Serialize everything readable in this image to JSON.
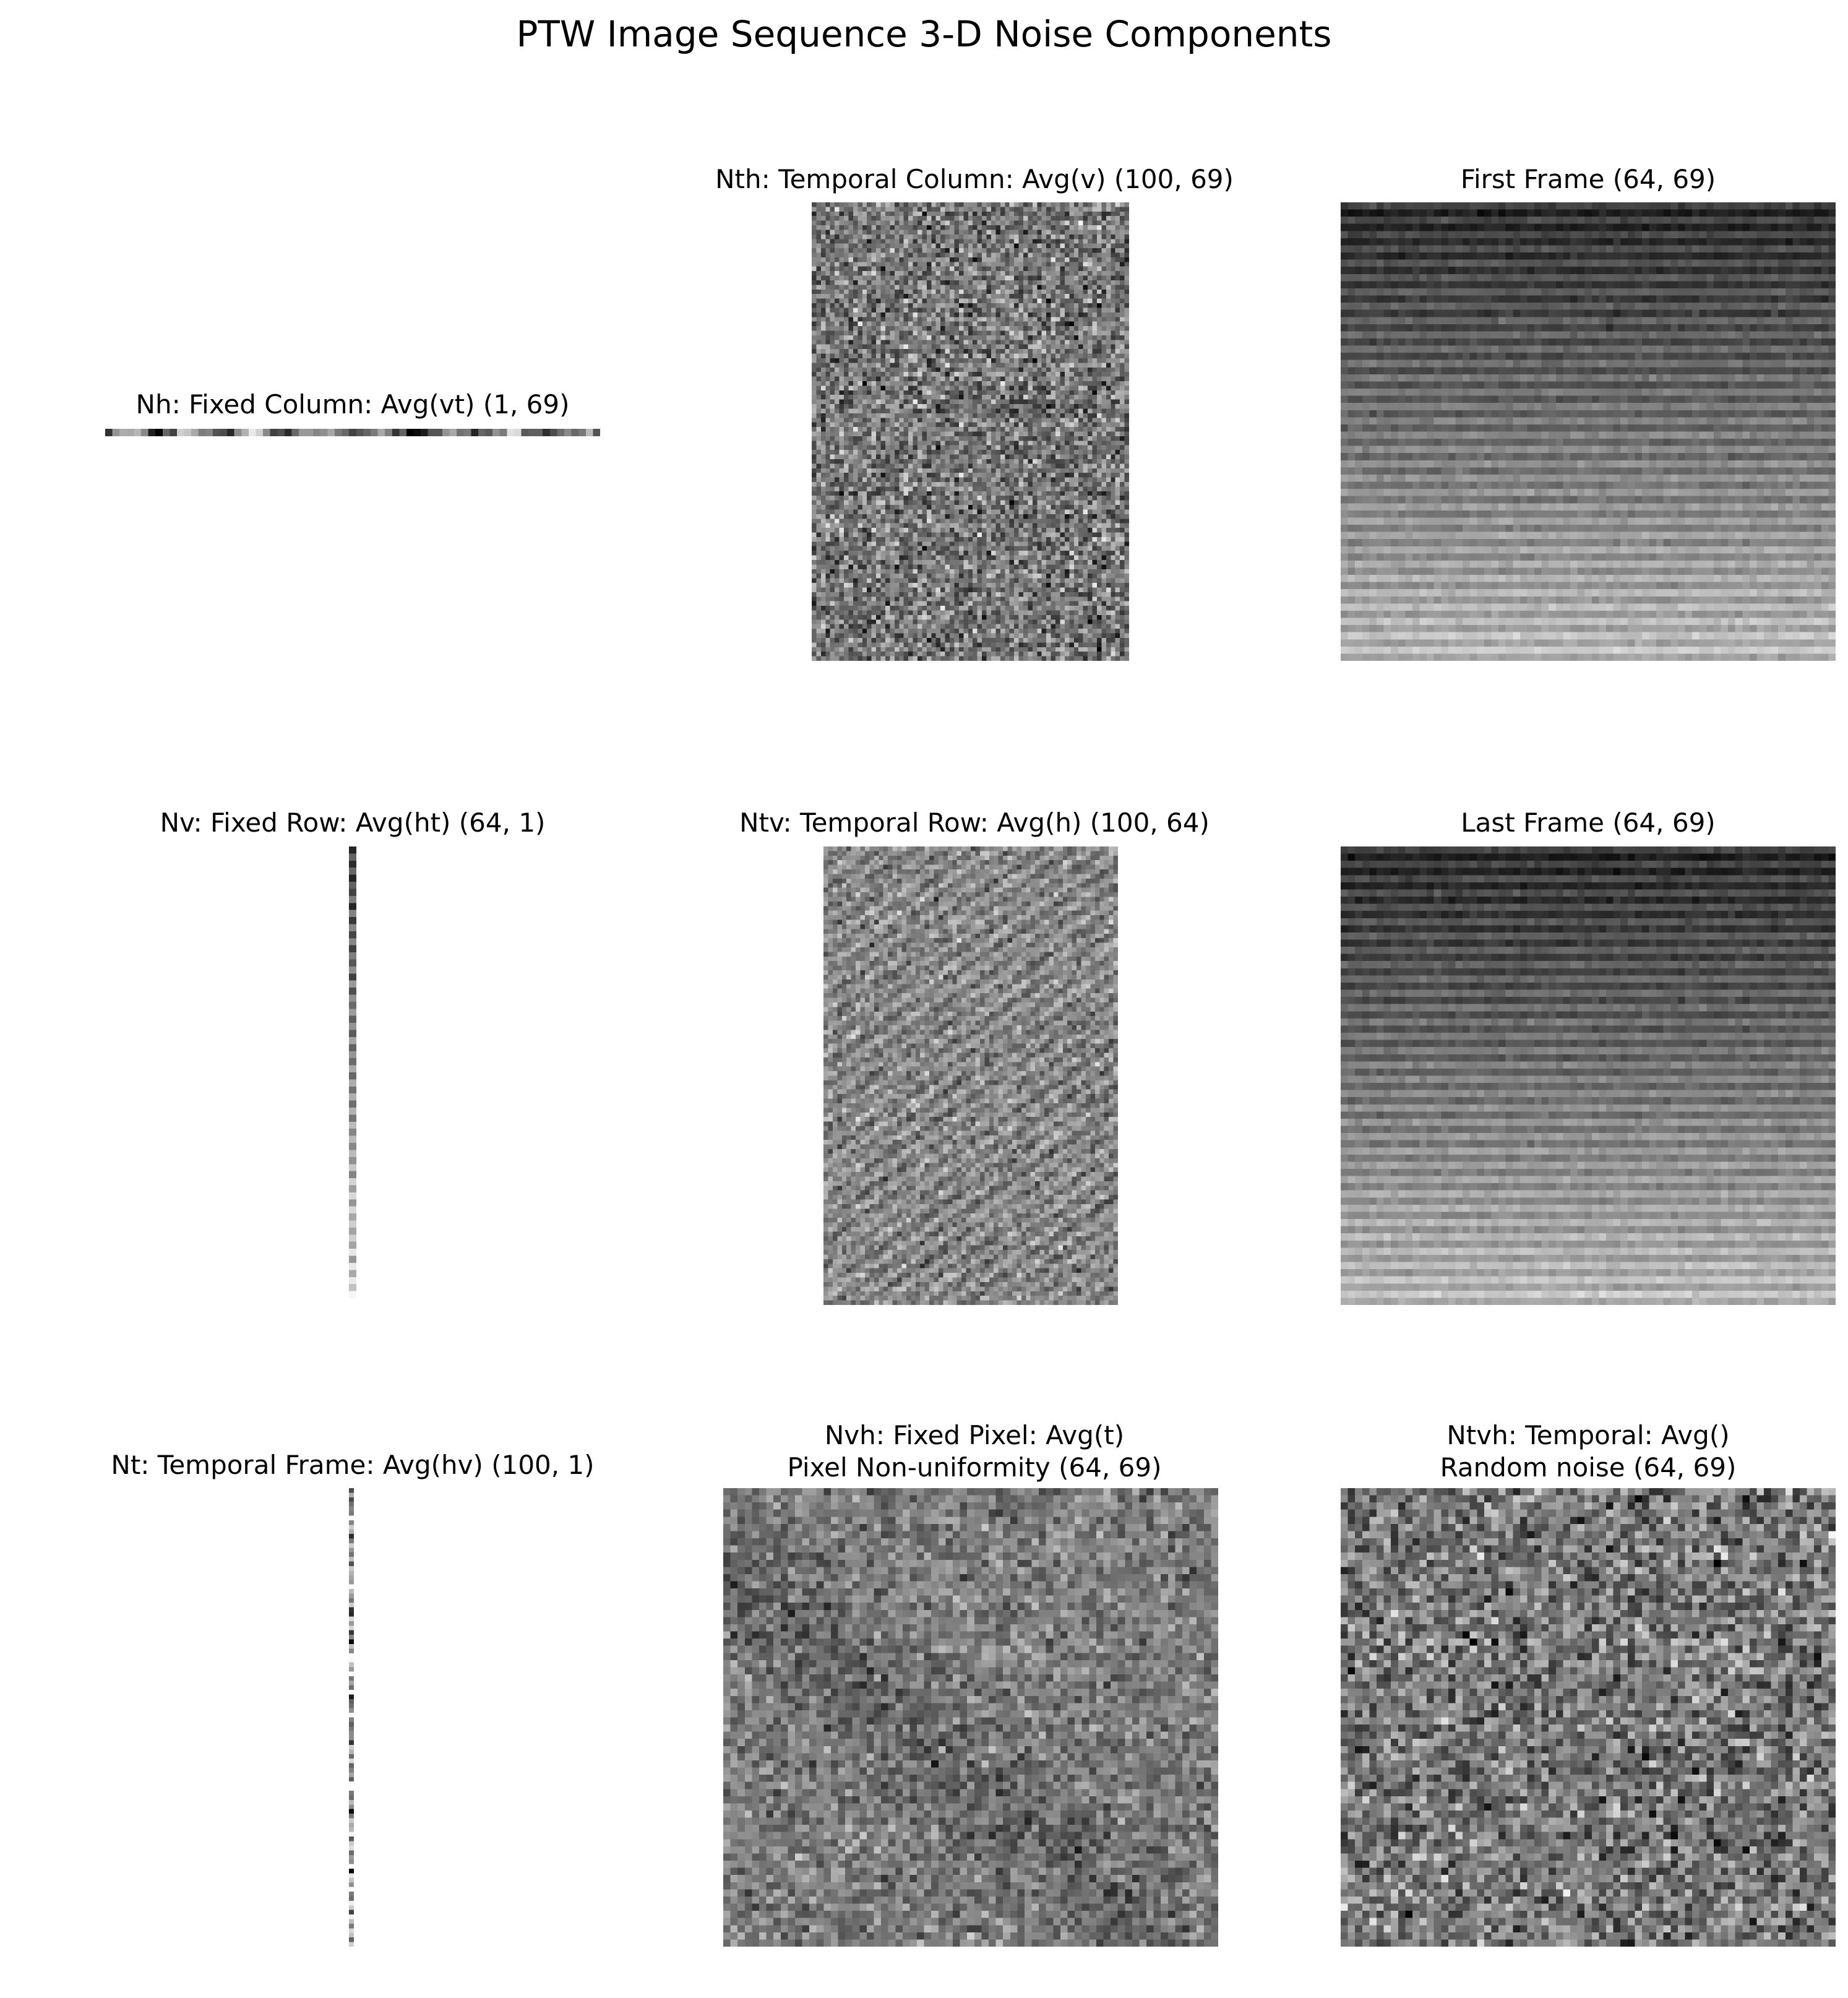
{
  "figure": {
    "title": "PTW Image Sequence 3-D Noise Components"
  },
  "panels": [
    {
      "id": "nh",
      "title": [
        "Nh: Fixed Column: Avg(vt) (1, 69)"
      ],
      "shape": [
        1,
        69
      ],
      "pattern": "fixed-column"
    },
    {
      "id": "nth",
      "title": [
        "Nth: Temporal Column: Avg(v) (100, 69)"
      ],
      "shape": [
        100,
        69
      ],
      "pattern": "random"
    },
    {
      "id": "first-frame",
      "title": [
        "First Frame (64, 69)"
      ],
      "shape": [
        64,
        69
      ],
      "pattern": "frame-stripes"
    },
    {
      "id": "nv",
      "title": [
        "Nv: Fixed Row: Avg(ht) (64, 1)"
      ],
      "shape": [
        64,
        1
      ],
      "pattern": "fixed-row"
    },
    {
      "id": "ntv",
      "title": [
        "Ntv: Temporal Row: Avg(h) (100, 64)"
      ],
      "shape": [
        100,
        64
      ],
      "pattern": "embossed"
    },
    {
      "id": "last-frame",
      "title": [
        "Last Frame (64, 69)"
      ],
      "shape": [
        64,
        69
      ],
      "pattern": "frame-stripes"
    },
    {
      "id": "nt",
      "title": [
        "Nt: Temporal Frame: Avg(hv) (100, 1)"
      ],
      "shape": [
        100,
        1
      ],
      "pattern": "temporal-frame"
    },
    {
      "id": "nvh",
      "title": [
        "Nvh: Fixed Pixel: Avg(t)",
        "Pixel Non-uniformity (64, 69)"
      ],
      "shape": [
        64,
        69
      ],
      "pattern": "smooth-noise"
    },
    {
      "id": "ntvh",
      "title": [
        "Ntvh: Temporal: Avg()",
        "Random noise (64, 69)"
      ],
      "shape": [
        64,
        69
      ],
      "pattern": "random"
    }
  ]
}
